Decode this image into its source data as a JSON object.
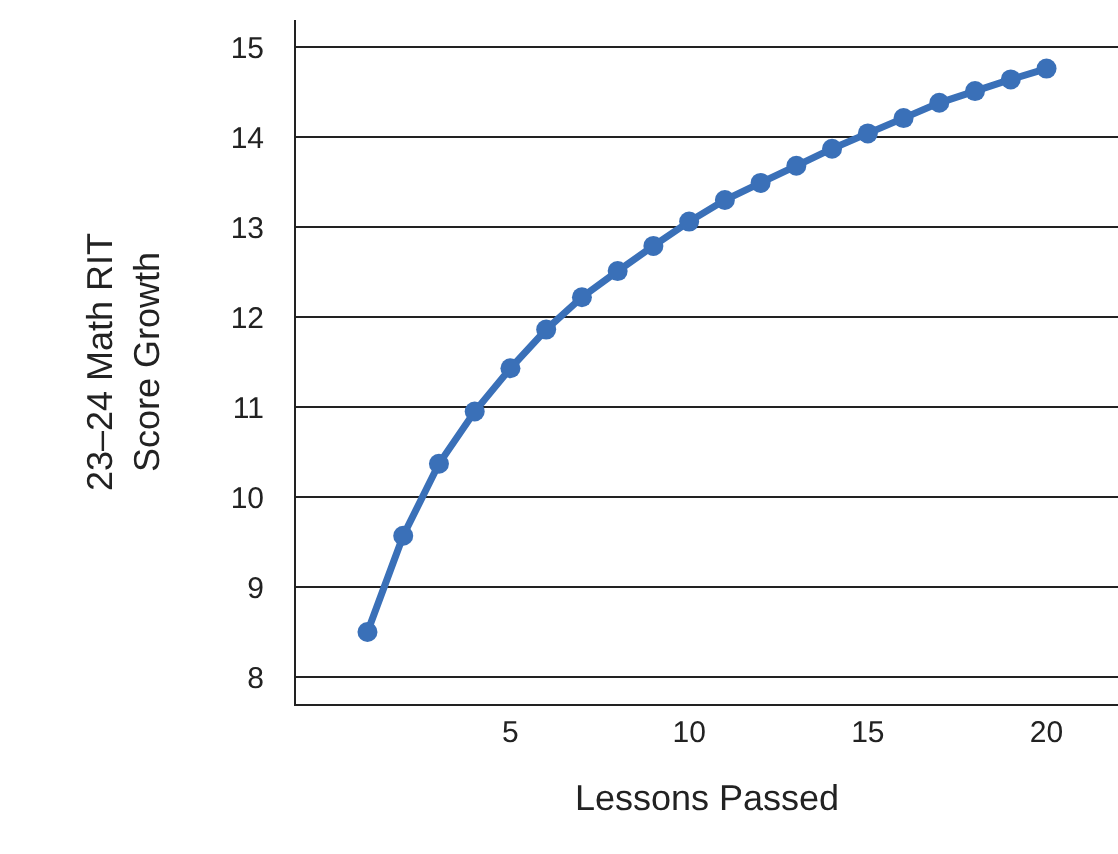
{
  "chart_data": {
    "type": "line",
    "xlabel": "Lessons Passed",
    "ylabel": "23–24 Math RIT\nScore Growth",
    "x": [
      1,
      2,
      3,
      4,
      5,
      6,
      7,
      8,
      9,
      10,
      11,
      12,
      13,
      14,
      15,
      16,
      17,
      18,
      19,
      20
    ],
    "series": [
      {
        "color": "#3a70b8",
        "values": [
          8.5,
          9.57,
          10.37,
          10.95,
          11.43,
          11.86,
          12.22,
          12.51,
          12.79,
          13.06,
          13.3,
          13.49,
          13.68,
          13.87,
          14.04,
          14.21,
          14.38,
          14.51,
          14.64,
          14.76
        ]
      }
    ],
    "xlim": [
      -1,
      22
    ],
    "xticks": [
      5,
      10,
      15,
      20
    ],
    "ylim": [
      7.7,
      15.3
    ],
    "yticks": [
      8,
      9,
      10,
      11,
      12,
      13,
      14,
      15
    ],
    "grid": "y",
    "marker": "circle",
    "line_style": "solid",
    "legend": false
  }
}
